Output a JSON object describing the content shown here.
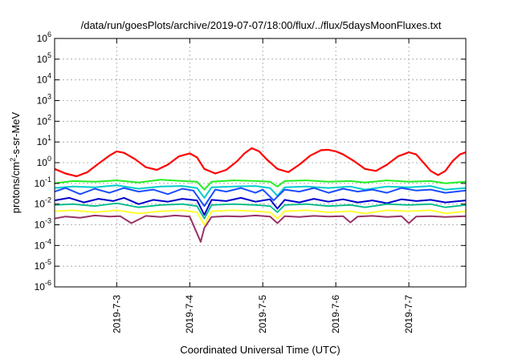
{
  "chart_data": {
    "type": "line",
    "title": "/data/run/goesPlots/archive/2019-07-07/18:00/flux/../flux/5daysMoonFluxes.txt",
    "xlabel": "Coordinated Universal Time (UTC)",
    "ylabel": {
      "prefix": "protons/cm",
      "sup": "2",
      "suffix": "-s-sr-MeV"
    },
    "yscale": "log",
    "ylim": [
      1e-06,
      1000000.0
    ],
    "xlim_days": [
      2.15,
      7.78
    ],
    "grid": true,
    "legend": "none",
    "xticks": [
      {
        "label": "2019-7-3",
        "day": 3
      },
      {
        "label": "2019-7-4",
        "day": 4
      },
      {
        "label": "2019-7-5",
        "day": 5
      },
      {
        "label": "2019-7-6",
        "day": 6
      },
      {
        "label": "2019-7-7",
        "day": 7
      }
    ],
    "yticks": [
      {
        "exp": 6,
        "label": "10",
        "sup": "6"
      },
      {
        "exp": 5,
        "label": "10",
        "sup": "5"
      },
      {
        "exp": 4,
        "label": "10",
        "sup": "4"
      },
      {
        "exp": 3,
        "label": "10",
        "sup": "3"
      },
      {
        "exp": 2,
        "label": "10",
        "sup": "2"
      },
      {
        "exp": 1,
        "label": "10",
        "sup": "1"
      },
      {
        "exp": 0,
        "label": "10",
        "sup": "0"
      },
      {
        "exp": -1,
        "label": "10",
        "sup": "-1"
      },
      {
        "exp": -2,
        "label": "10",
        "sup": "-2"
      },
      {
        "exp": -3,
        "label": "10",
        "sup": "-3"
      },
      {
        "exp": -4,
        "label": "10",
        "sup": "-4"
      },
      {
        "exp": -5,
        "label": "10",
        "sup": "-5"
      },
      {
        "exp": -6,
        "label": "10",
        "sup": "-6"
      }
    ],
    "series": [
      {
        "color": "#ff0000",
        "width": 2.2,
        "x": [
          2.15,
          2.3,
          2.45,
          2.6,
          2.75,
          2.9,
          3.0,
          3.1,
          3.25,
          3.4,
          3.55,
          3.7,
          3.85,
          4.0,
          4.1,
          4.2,
          4.35,
          4.5,
          4.65,
          4.75,
          4.85,
          4.95,
          5.05,
          5.2,
          5.35,
          5.5,
          5.65,
          5.8,
          5.9,
          6.0,
          6.1,
          6.25,
          6.4,
          6.55,
          6.7,
          6.85,
          7.0,
          7.1,
          7.2,
          7.3,
          7.4,
          7.5,
          7.6,
          7.7,
          7.78
        ],
        "y": [
          0.5,
          0.3,
          0.22,
          0.35,
          0.9,
          2.2,
          3.5,
          3.0,
          1.5,
          0.6,
          0.45,
          0.8,
          2.0,
          2.8,
          1.8,
          0.5,
          0.3,
          0.45,
          1.2,
          2.8,
          5.0,
          3.5,
          1.5,
          0.5,
          0.35,
          0.8,
          2.2,
          4.0,
          4.2,
          3.5,
          2.5,
          1.2,
          0.5,
          0.4,
          0.8,
          2.0,
          3.2,
          2.5,
          1.0,
          0.4,
          0.25,
          0.4,
          1.2,
          2.5,
          3.2
        ]
      },
      {
        "color": "#22ee22",
        "width": 2,
        "x": [
          2.15,
          2.4,
          2.7,
          3.0,
          3.3,
          3.6,
          3.9,
          4.1,
          4.2,
          4.3,
          4.6,
          4.9,
          5.1,
          5.2,
          5.3,
          5.6,
          5.9,
          6.2,
          6.4,
          6.7,
          7.0,
          7.3,
          7.5,
          7.78
        ],
        "y": [
          0.1,
          0.13,
          0.12,
          0.14,
          0.11,
          0.15,
          0.13,
          0.12,
          0.05,
          0.12,
          0.14,
          0.13,
          0.12,
          0.07,
          0.13,
          0.14,
          0.12,
          0.13,
          0.11,
          0.14,
          0.12,
          0.13,
          0.1,
          0.12
        ]
      },
      {
        "color": "#00cccc",
        "width": 2,
        "x": [
          2.15,
          2.4,
          2.7,
          3.0,
          3.3,
          3.6,
          3.9,
          4.1,
          4.2,
          4.3,
          4.6,
          4.9,
          5.1,
          5.2,
          5.3,
          5.6,
          5.9,
          6.2,
          6.4,
          6.7,
          7.0,
          7.3,
          7.5,
          7.78
        ],
        "y": [
          0.06,
          0.07,
          0.065,
          0.08,
          0.055,
          0.07,
          0.075,
          0.06,
          0.02,
          0.065,
          0.07,
          0.075,
          0.06,
          0.025,
          0.065,
          0.07,
          0.06,
          0.07,
          0.05,
          0.07,
          0.065,
          0.075,
          0.05,
          0.06
        ]
      },
      {
        "color": "#1a4dff",
        "width": 2,
        "x": [
          2.15,
          2.3,
          2.5,
          2.7,
          2.9,
          3.1,
          3.3,
          3.5,
          3.7,
          3.9,
          4.05,
          4.2,
          4.35,
          4.5,
          4.7,
          4.9,
          5.0,
          5.15,
          5.3,
          5.5,
          5.7,
          5.9,
          6.1,
          6.3,
          6.5,
          6.7,
          6.9,
          7.1,
          7.3,
          7.5,
          7.78
        ],
        "y": [
          0.04,
          0.06,
          0.03,
          0.055,
          0.035,
          0.06,
          0.04,
          0.05,
          0.03,
          0.055,
          0.045,
          0.008,
          0.05,
          0.04,
          0.06,
          0.035,
          0.05,
          0.015,
          0.05,
          0.04,
          0.06,
          0.035,
          0.055,
          0.04,
          0.05,
          0.035,
          0.06,
          0.045,
          0.05,
          0.035,
          0.045
        ]
      },
      {
        "color": "#0000cc",
        "width": 2,
        "x": [
          2.15,
          2.35,
          2.55,
          2.75,
          2.95,
          3.1,
          3.3,
          3.5,
          3.7,
          3.9,
          4.1,
          4.2,
          4.3,
          4.5,
          4.7,
          4.9,
          5.1,
          5.2,
          5.3,
          5.5,
          5.7,
          5.9,
          6.1,
          6.3,
          6.5,
          6.7,
          6.9,
          7.1,
          7.3,
          7.5,
          7.78
        ],
        "y": [
          0.015,
          0.02,
          0.012,
          0.018,
          0.014,
          0.02,
          0.01,
          0.016,
          0.013,
          0.018,
          0.015,
          0.003,
          0.016,
          0.014,
          0.02,
          0.013,
          0.017,
          0.006,
          0.016,
          0.012,
          0.018,
          0.013,
          0.017,
          0.012,
          0.015,
          0.011,
          0.017,
          0.014,
          0.016,
          0.012,
          0.015
        ]
      },
      {
        "color": "#00bb88",
        "width": 1.8,
        "x": [
          2.15,
          2.4,
          2.7,
          3.0,
          3.3,
          3.6,
          3.9,
          4.1,
          4.2,
          4.3,
          4.6,
          4.9,
          5.1,
          5.2,
          5.3,
          5.6,
          5.9,
          6.2,
          6.4,
          6.7,
          7.0,
          7.3,
          7.5,
          7.78
        ],
        "y": [
          0.009,
          0.01,
          0.008,
          0.011,
          0.007,
          0.009,
          0.01,
          0.008,
          0.002,
          0.009,
          0.01,
          0.009,
          0.008,
          0.004,
          0.009,
          0.01,
          0.008,
          0.009,
          0.007,
          0.01,
          0.009,
          0.01,
          0.007,
          0.009
        ]
      },
      {
        "color": "#ffff33",
        "width": 2,
        "x": [
          2.15,
          2.4,
          2.7,
          3.0,
          3.3,
          3.6,
          3.9,
          4.1,
          4.2,
          4.3,
          4.6,
          4.9,
          5.1,
          5.2,
          5.3,
          5.6,
          5.9,
          6.2,
          6.4,
          6.7,
          7.0,
          7.3,
          7.5,
          7.78
        ],
        "y": [
          0.0045,
          0.005,
          0.004,
          0.005,
          0.0035,
          0.0045,
          0.005,
          0.004,
          0.001,
          0.0045,
          0.005,
          0.0045,
          0.004,
          0.002,
          0.0045,
          0.005,
          0.004,
          0.0045,
          0.0035,
          0.005,
          0.0045,
          0.005,
          0.0035,
          0.0045
        ]
      },
      {
        "color": "#993366",
        "width": 2,
        "x": [
          2.15,
          2.3,
          2.5,
          2.7,
          2.9,
          3.05,
          3.2,
          3.4,
          3.6,
          3.8,
          4.0,
          4.15,
          4.2,
          4.3,
          4.5,
          4.7,
          4.9,
          5.1,
          5.2,
          5.3,
          5.5,
          5.7,
          5.9,
          6.1,
          6.2,
          6.3,
          6.5,
          6.7,
          6.9,
          7.0,
          7.1,
          7.3,
          7.5,
          7.78
        ],
        "y": [
          0.002,
          0.0025,
          0.0022,
          0.0028,
          0.0025,
          0.0026,
          0.0012,
          0.0027,
          0.0024,
          0.0028,
          0.0025,
          0.00015,
          0.0007,
          0.0024,
          0.0026,
          0.0025,
          0.0028,
          0.0025,
          0.0012,
          0.0026,
          0.0024,
          0.0027,
          0.0025,
          0.0026,
          0.0013,
          0.0025,
          0.0027,
          0.0024,
          0.0026,
          0.0012,
          0.0025,
          0.0026,
          0.0024,
          0.0026
        ]
      }
    ]
  }
}
